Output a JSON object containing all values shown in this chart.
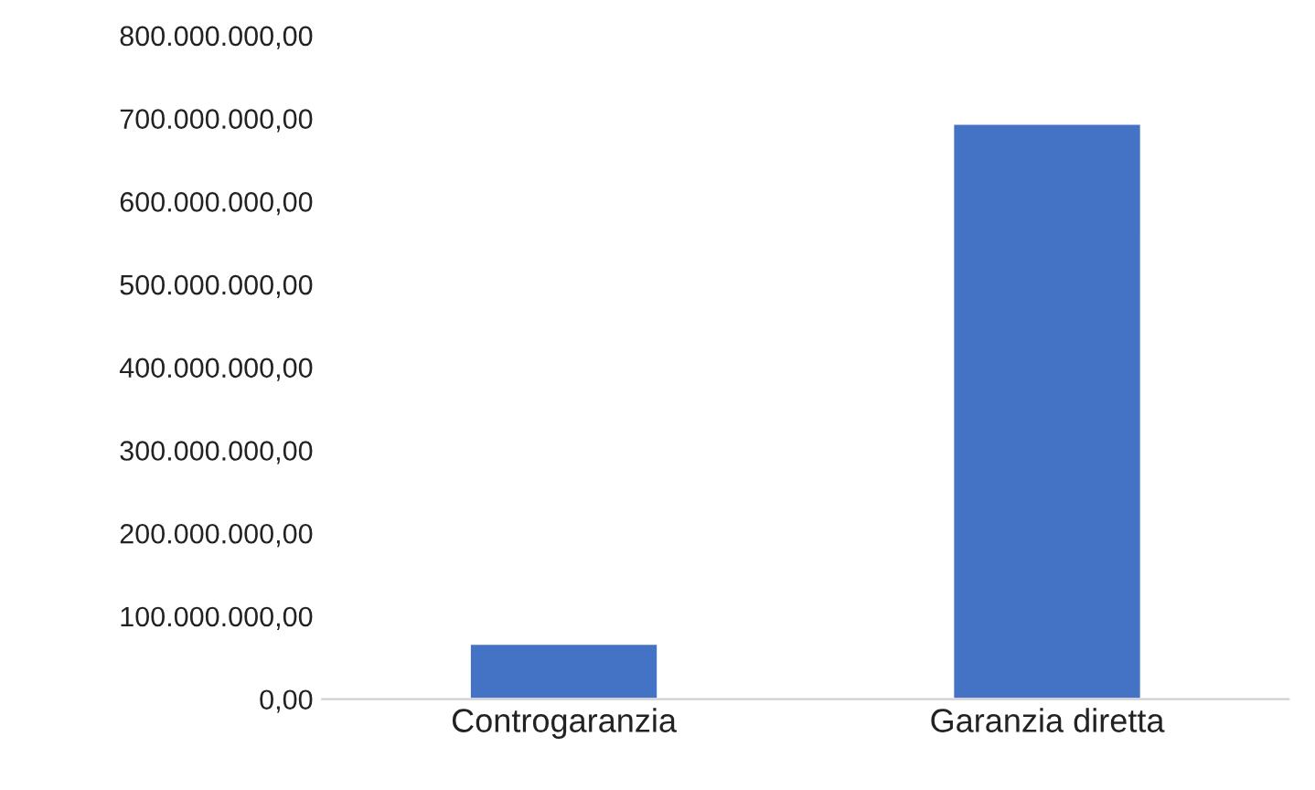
{
  "chart_data": {
    "type": "bar",
    "categories": [
      "Controgaranzia",
      "Garanzia diretta"
    ],
    "values": [
      67000000,
      694000000
    ],
    "color": "#4472c4",
    "ylim": [
      0,
      800000000
    ],
    "yticks": [
      {
        "value": 0,
        "label": "0,00"
      },
      {
        "value": 100000000,
        "label": "100.000.000,00"
      },
      {
        "value": 200000000,
        "label": "200.000.000,00"
      },
      {
        "value": 300000000,
        "label": "300.000.000,00"
      },
      {
        "value": 400000000,
        "label": "400.000.000,00"
      },
      {
        "value": 500000000,
        "label": "500.000.000,00"
      },
      {
        "value": 600000000,
        "label": "600.000.000,00"
      },
      {
        "value": 700000000,
        "label": "700.000.000,00"
      },
      {
        "value": 800000000,
        "label": "800.000.000,00"
      }
    ],
    "grid": false
  }
}
